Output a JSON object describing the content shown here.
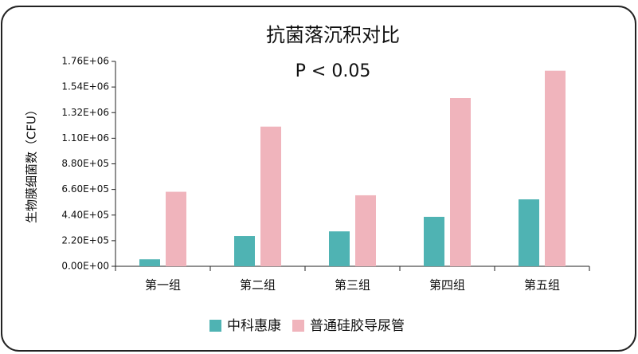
{
  "chart_data": {
    "type": "bar",
    "title": "抗菌落沉积对比",
    "annotation": "P < 0.05",
    "y_label": "生物膜细菌数（CFU）",
    "categories": [
      "第一组",
      "第二组",
      "第三组",
      "第四组",
      "第五组"
    ],
    "series": [
      {
        "name": "中科惠康",
        "color": "#4fb3b3",
        "values": [
          60000,
          260000,
          300000,
          425000,
          575000
        ]
      },
      {
        "name": "普通硅胶导尿管",
        "color": "#f0b4bc",
        "values": [
          640000,
          1200000,
          610000,
          1445000,
          1680000
        ]
      }
    ],
    "ylim": [
      0,
      1760000
    ],
    "yticks": [
      {
        "value": 0,
        "label": "0.00E+00"
      },
      {
        "value": 220000,
        "label": "2.20E+05"
      },
      {
        "value": 440000,
        "label": "4.40E+05"
      },
      {
        "value": 660000,
        "label": "6.60E+05"
      },
      {
        "value": 880000,
        "label": "8.80E+05"
      },
      {
        "value": 1100000,
        "label": "1.10E+06"
      },
      {
        "value": 1320000,
        "label": "1.32E+06"
      },
      {
        "value": 1540000,
        "label": "1.54E+06"
      },
      {
        "value": 1760000,
        "label": "1.76E+06"
      }
    ],
    "grid": false
  }
}
